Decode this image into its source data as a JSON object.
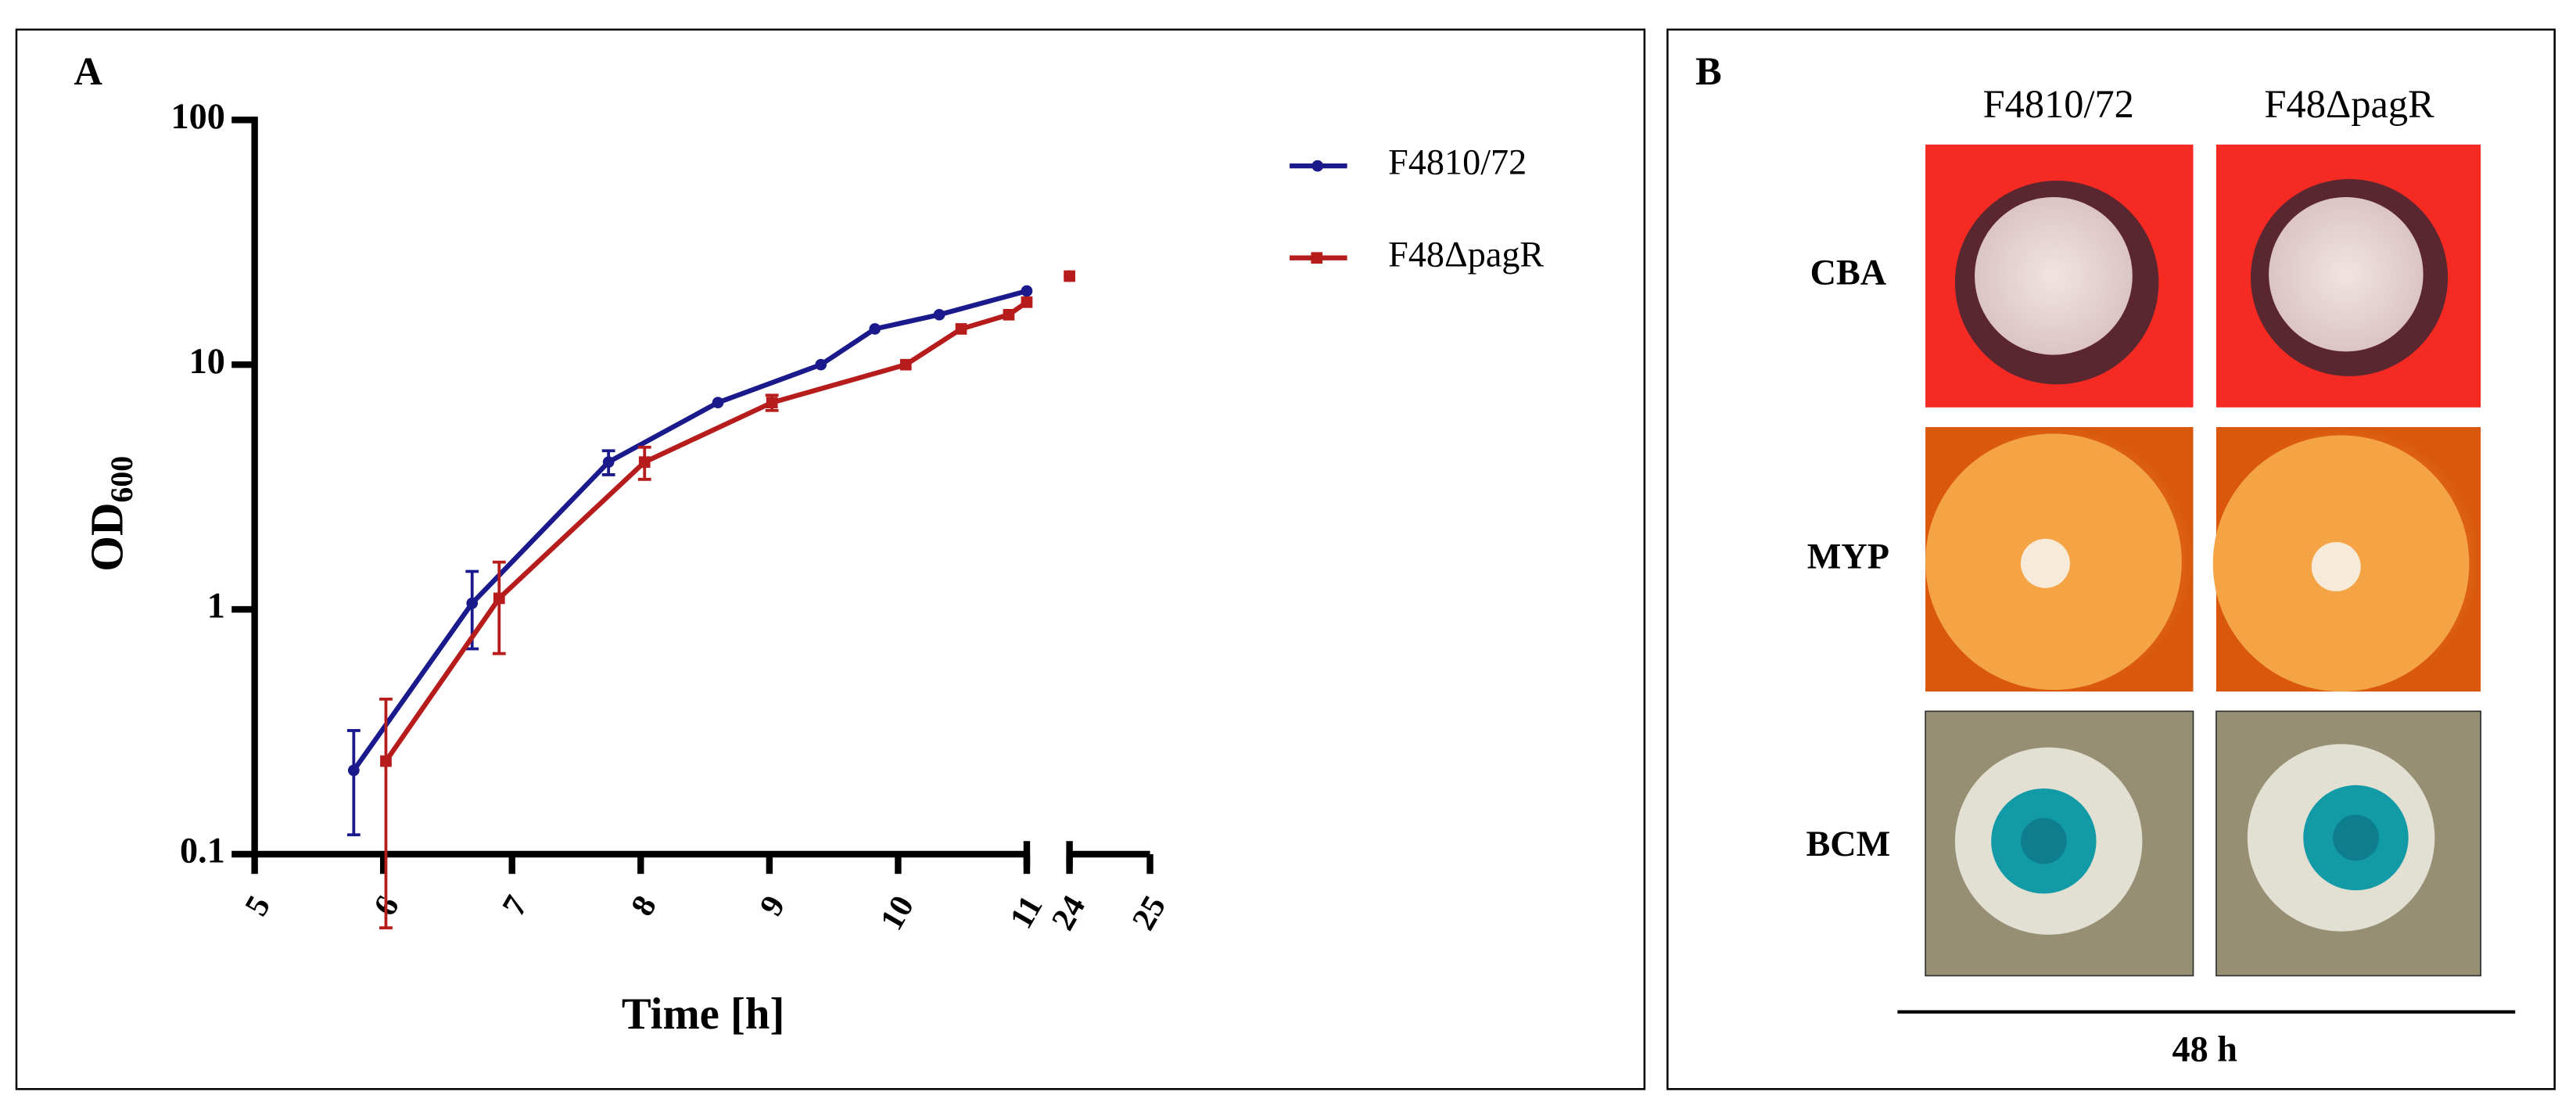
{
  "chart_data": {
    "type": "line",
    "panel_label": "A",
    "xlabel": "Time [h]",
    "ylabel": "OD",
    "ylabel_sub": "600",
    "ylog": true,
    "ylim": [
      0.1,
      100
    ],
    "yticks": [
      0.1,
      1,
      10,
      100
    ],
    "xlim": [
      5,
      25
    ],
    "xbreak": [
      11,
      24
    ],
    "xticks": [
      5,
      6,
      7,
      8,
      9,
      10,
      11,
      24,
      25
    ],
    "series": [
      {
        "name": "F4810/72",
        "color": "#1a1a8c",
        "marker": "circle",
        "x": [
          5.77,
          6.69,
          7.75,
          8.6,
          9.4,
          9.82,
          10.32,
          11,
          24
        ],
        "values": [
          0.22,
          1.06,
          4,
          7,
          10,
          14,
          16,
          20,
          23
        ],
        "errors": [
          0.1,
          0.37,
          0.45,
          null,
          null,
          null,
          null,
          null,
          null
        ]
      },
      {
        "name": "F48ΔpagR",
        "color": "#b71c1c",
        "marker": "square",
        "x": [
          6.02,
          6.9,
          8.03,
          9.02,
          10.06,
          10.49,
          10.86,
          11,
          24
        ],
        "values": [
          0.24,
          1.11,
          4,
          7,
          10,
          14,
          16,
          18,
          23
        ],
        "errors": [
          0.19,
          0.45,
          0.6,
          0.5,
          null,
          null,
          null,
          null,
          null
        ]
      }
    ]
  },
  "panel_b": {
    "panel_label": "B",
    "columns": [
      "F4810/72",
      "F48ΔpagR"
    ],
    "rows": [
      "CBA",
      "MYP",
      "BCM"
    ],
    "footer": "48 h"
  }
}
